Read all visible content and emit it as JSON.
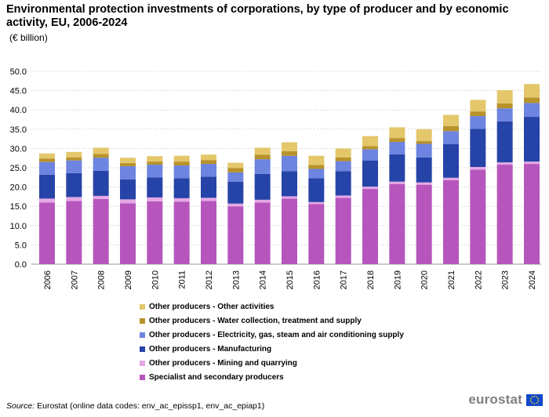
{
  "header": {
    "title": "Environmental protection investments of corporations, by type of producer and by economic activity, EU, 2006-2024",
    "unit": "(€ billion)"
  },
  "chart_data": {
    "type": "bar",
    "stacked": true,
    "categories": [
      "2006",
      "2007",
      "2008",
      "2009",
      "2010",
      "2011",
      "2012",
      "2013",
      "2014",
      "2015",
      "2016",
      "2017",
      "2018",
      "2019",
      "2020",
      "2021",
      "2022",
      "2023",
      "2024"
    ],
    "ylim": [
      0,
      50
    ],
    "yticks": [
      "0.0",
      "5.0",
      "10.0",
      "15.0",
      "20.0",
      "25.0",
      "30.0",
      "35.0",
      "40.0",
      "45.0",
      "50.0"
    ],
    "xlabel": "",
    "ylabel": "",
    "grid": true,
    "legend_position": "bottom",
    "series": [
      {
        "name": "Specialist and secondary producers",
        "color": "#b656bd",
        "values": [
          16.0,
          16.4,
          16.9,
          15.8,
          16.3,
          16.2,
          16.4,
          15.0,
          16.0,
          17.0,
          15.6,
          17.2,
          19.5,
          20.8,
          20.6,
          21.8,
          24.5,
          25.8,
          26.0
        ]
      },
      {
        "name": "Other producers - Mining and quarrying",
        "color": "#e4a8e5",
        "values": [
          1.0,
          1.0,
          0.8,
          1.0,
          1.0,
          0.9,
          0.8,
          0.7,
          0.7,
          0.6,
          0.5,
          0.6,
          0.6,
          0.6,
          0.6,
          0.6,
          0.7,
          0.6,
          0.6
        ]
      },
      {
        "name": "Other producers - Manufacturing",
        "color": "#2643a8",
        "values": [
          6.2,
          6.2,
          6.5,
          5.2,
          5.2,
          5.2,
          5.5,
          5.7,
          6.7,
          6.5,
          6.2,
          6.3,
          6.8,
          7.1,
          6.5,
          8.7,
          9.9,
          10.6,
          11.6
        ]
      },
      {
        "name": "Other producers - Electricity, gas, steam and air conditioning supply",
        "color": "#6d84e0",
        "values": [
          3.3,
          3.3,
          3.4,
          3.4,
          3.3,
          3.3,
          3.3,
          2.4,
          3.8,
          4.0,
          2.4,
          2.6,
          2.9,
          3.2,
          3.5,
          3.4,
          3.3,
          3.4,
          3.6
        ]
      },
      {
        "name": "Other producers - Water collection, treatment and supply",
        "color": "#b8922b",
        "values": [
          0.9,
          0.8,
          1.0,
          0.8,
          0.8,
          1.0,
          1.0,
          1.1,
          1.2,
          1.2,
          1.0,
          1.0,
          0.8,
          1.0,
          0.7,
          1.3,
          1.2,
          1.3,
          1.4
        ]
      },
      {
        "name": "Other producers - Other activities",
        "color": "#e3c76a",
        "values": [
          1.3,
          1.4,
          1.6,
          1.4,
          1.4,
          1.5,
          1.4,
          1.4,
          1.8,
          2.3,
          2.4,
          2.3,
          2.6,
          2.8,
          3.1,
          2.9,
          3.0,
          3.4,
          3.5
        ]
      }
    ]
  },
  "legend": [
    {
      "label": "Other producers - Other activities",
      "color": "#e3c76a"
    },
    {
      "label": "Other producers - Water collection, treatment and supply",
      "color": "#b8922b"
    },
    {
      "label": "Other producers - Electricity, gas, steam and air conditioning supply",
      "color": "#6d84e0"
    },
    {
      "label": "Other producers - Manufacturing",
      "color": "#2643a8"
    },
    {
      "label": "Other producers - Mining and quarrying",
      "color": "#e4a8e5"
    },
    {
      "label": "Specialist and secondary producers",
      "color": "#b656bd"
    }
  ],
  "footer": {
    "source_label": "Source:",
    "source_text": "Eurostat (online data codes:  env_ac_epissp1, env_ac_epiap1)",
    "logo_text": "eurostat",
    "logo_icon": "eu-flag-icon"
  }
}
